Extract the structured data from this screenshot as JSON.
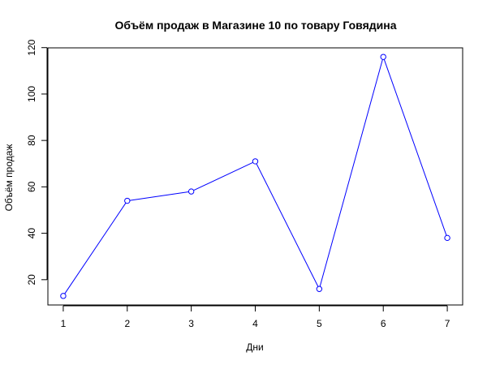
{
  "chart_data": {
    "type": "line",
    "title": "Объём продаж в Магазине 10 по товару Говядина",
    "xlabel": "Дни",
    "ylabel": "Объём продаж",
    "x": [
      1,
      2,
      3,
      4,
      5,
      6,
      7
    ],
    "x_tick_labels": [
      "1",
      "2",
      "3",
      "4",
      "5",
      "6",
      "7"
    ],
    "y_tick_labels": [
      "20",
      "40",
      "60",
      "80",
      "100",
      "120"
    ],
    "y_ticks": [
      20,
      40,
      60,
      80,
      100,
      120
    ],
    "series": [
      {
        "values": [
          13,
          54,
          58,
          71,
          16,
          116,
          38
        ],
        "color": "#0000ff"
      }
    ],
    "xlim": [
      0.76,
      7.24
    ],
    "ylim": [
      9.1,
      119.9
    ],
    "grid": false,
    "marker": "open-circle"
  }
}
